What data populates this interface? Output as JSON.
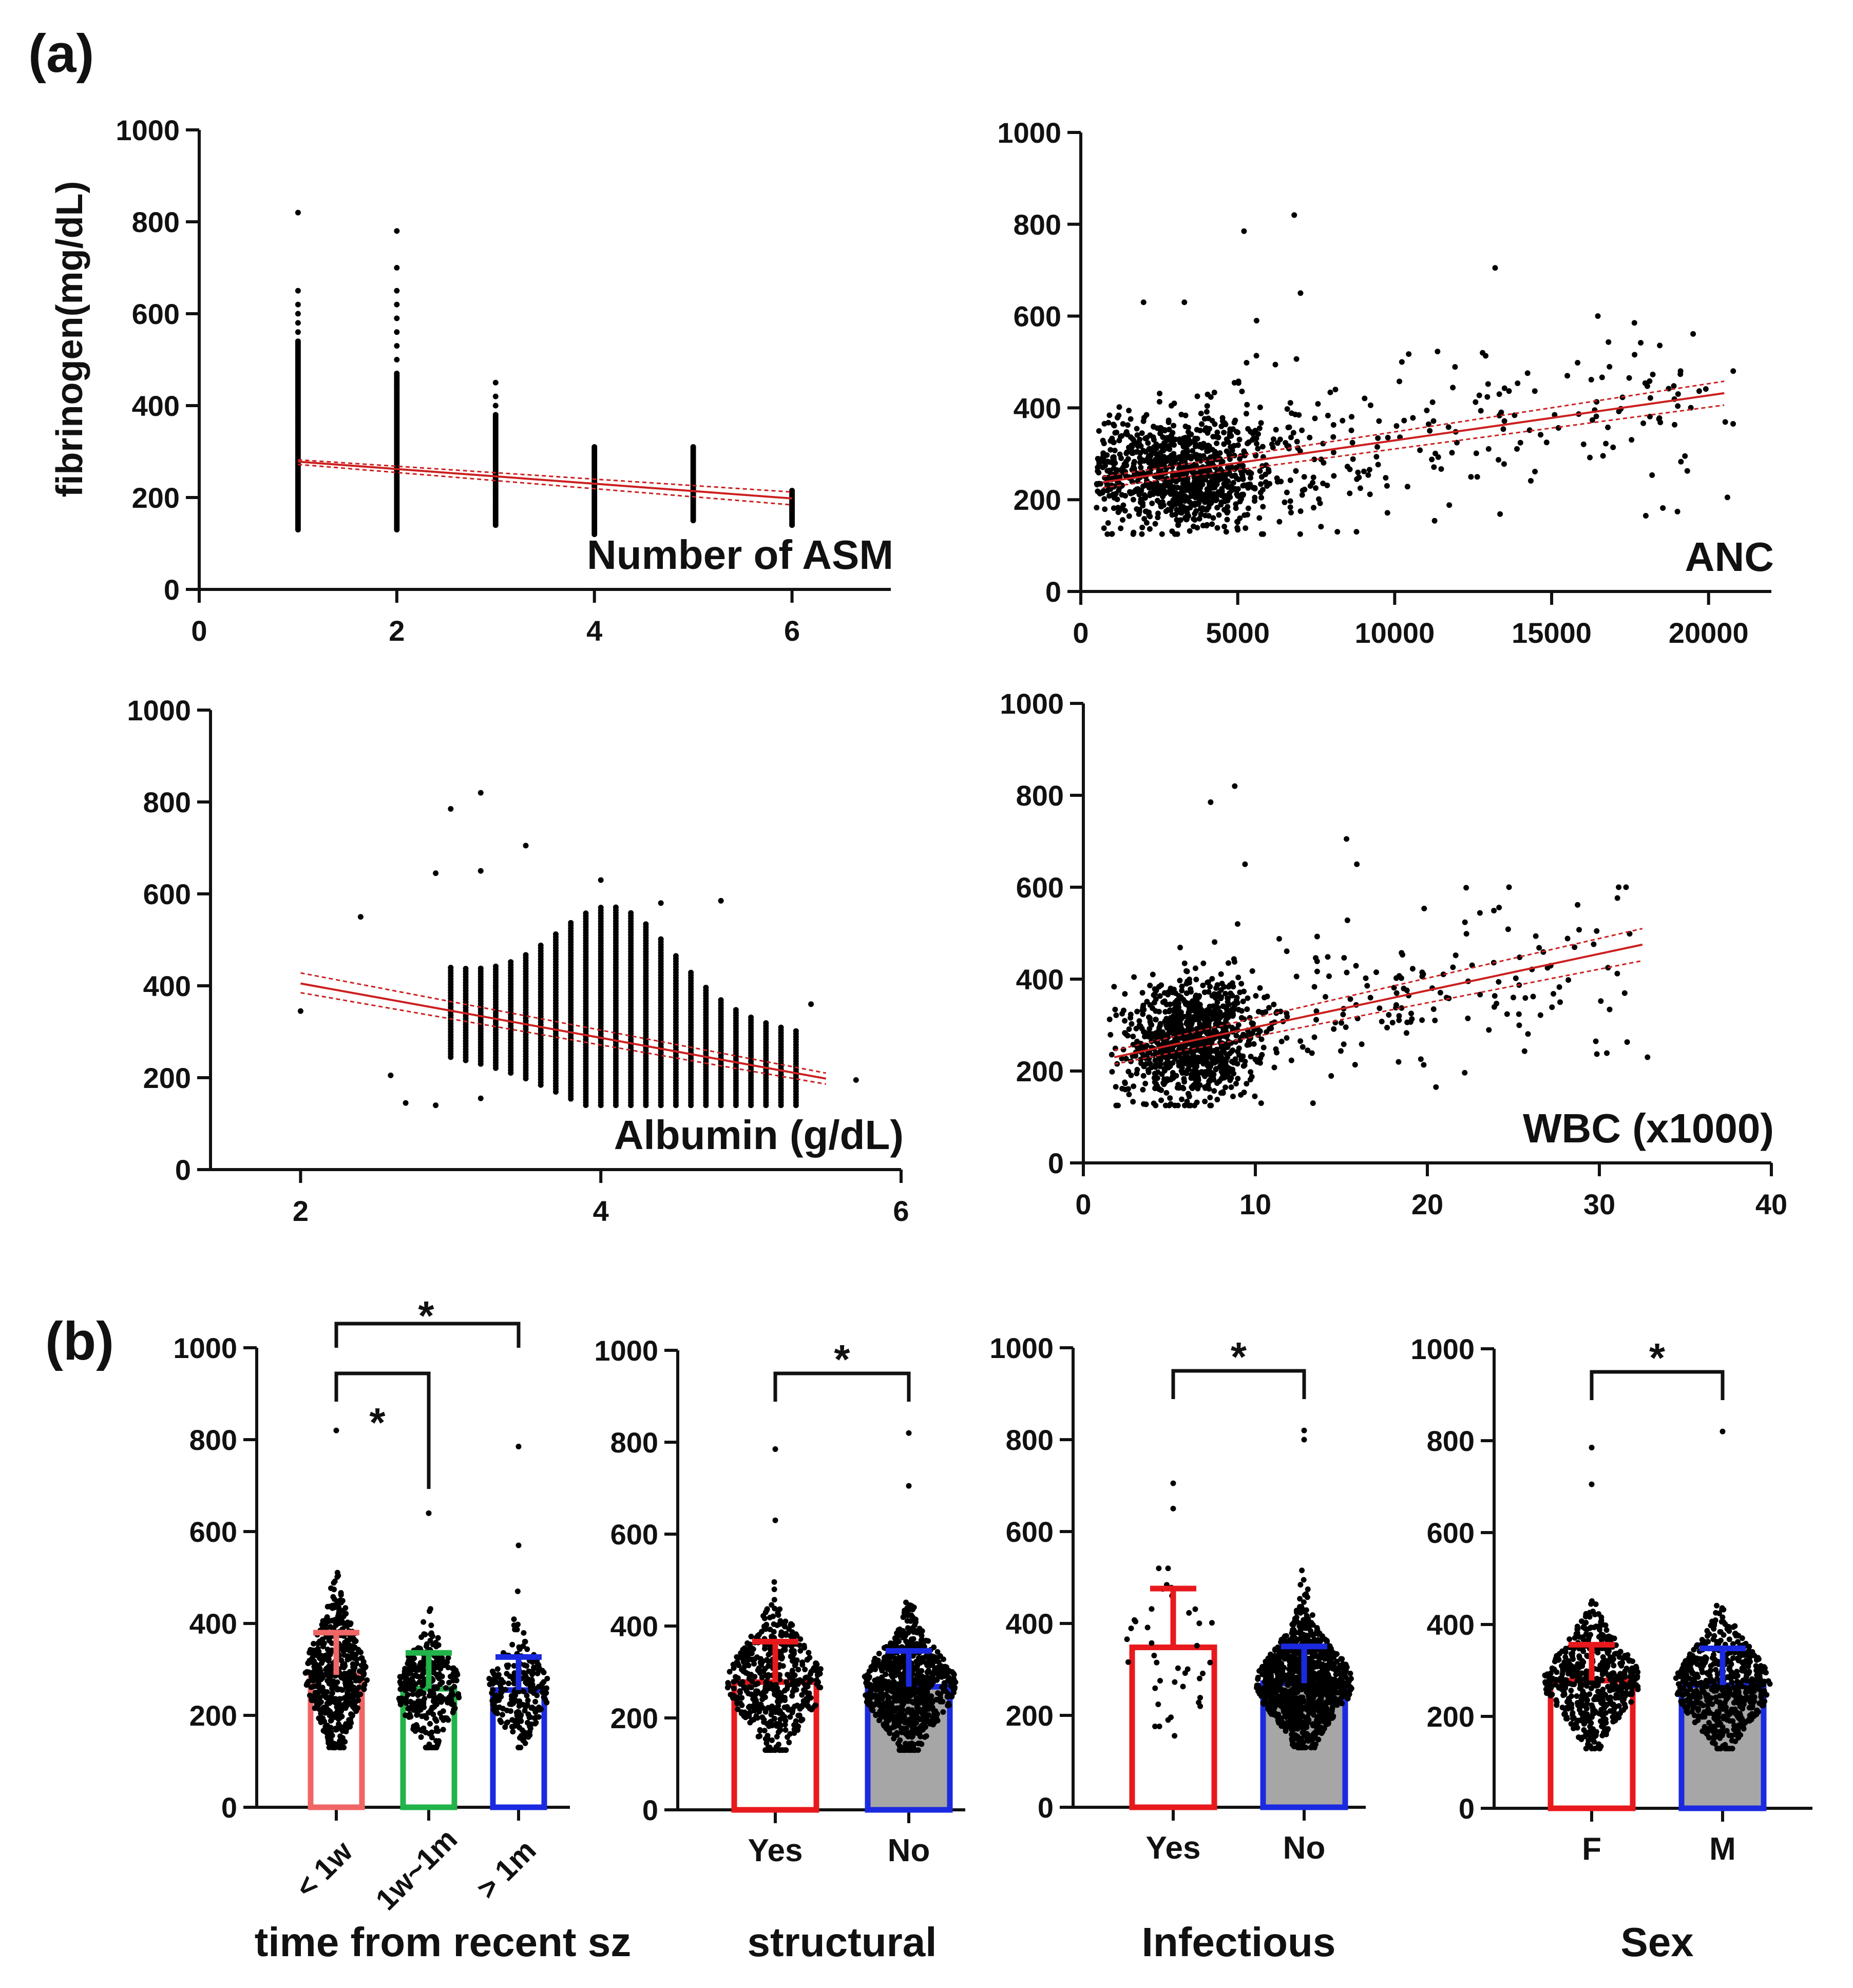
{
  "figure": {
    "label_a": "(a)",
    "label_b": "(b)"
  },
  "colors": {
    "fit": "#cc1f1f",
    "points": "#000000",
    "red": "#e8191d",
    "salmon": "#f06666",
    "green": "#22b34a",
    "blue": "#1b2ae0",
    "gray": "#a6a6a6"
  },
  "chart_data": [
    {
      "id": "a1",
      "type": "scatter",
      "xlabel": "Number of ASM",
      "ylabel": "fibrinogen(mg/dL)",
      "xlim": [
        0,
        7
      ],
      "ylim": [
        0,
        1000
      ],
      "xticks": [
        0,
        2,
        4,
        6
      ],
      "yticks": [
        0,
        200,
        400,
        600,
        800,
        1000
      ],
      "xtick_labels": [
        "0",
        "2",
        "4",
        "6"
      ],
      "ytick_labels": [
        "0",
        "200",
        "400",
        "600",
        "800",
        "1000"
      ],
      "fit": {
        "x": [
          1,
          6
        ],
        "y": [
          278,
          198
        ]
      },
      "ci_upper": {
        "x": [
          1,
          6
        ],
        "y": [
          282,
          212
        ]
      },
      "ci_lower": {
        "x": [
          1,
          6
        ],
        "y": [
          272,
          184
        ]
      },
      "columns": [
        {
          "x": 1,
          "min": 130,
          "max": 540,
          "outliers": [
            560,
            580,
            600,
            620,
            650,
            820
          ]
        },
        {
          "x": 2,
          "min": 130,
          "max": 470,
          "outliers": [
            500,
            530,
            560,
            590,
            620,
            650,
            700,
            780
          ]
        },
        {
          "x": 3,
          "min": 140,
          "max": 380,
          "outliers": [
            400,
            420,
            450
          ]
        },
        {
          "x": 4,
          "min": 120,
          "max": 310,
          "outliers": []
        },
        {
          "x": 5,
          "min": 150,
          "max": 310,
          "outliers": []
        },
        {
          "x": 6,
          "min": 140,
          "max": 215,
          "outliers": []
        }
      ]
    },
    {
      "id": "a2",
      "type": "scatter",
      "xlabel": "ANC",
      "xlim": [
        0,
        22000
      ],
      "ylim": [
        0,
        1000
      ],
      "xticks": [
        0,
        5000,
        10000,
        15000,
        20000
      ],
      "yticks": [
        0,
        200,
        400,
        600,
        800,
        1000
      ],
      "xtick_labels": [
        "0",
        "5000",
        "10000",
        "15000",
        "20000"
      ],
      "ytick_labels": [
        "0",
        "200",
        "400",
        "600",
        "800",
        "1000"
      ],
      "fit": {
        "x": [
          700,
          20500
        ],
        "y": [
          238,
          432
        ]
      },
      "ci_upper": {
        "x": [
          700,
          20500
        ],
        "y": [
          250,
          458
        ]
      },
      "ci_lower": {
        "x": [
          700,
          20500
        ],
        "y": [
          226,
          406
        ]
      },
      "cluster": {
        "cx": 3200,
        "sx": 1500,
        "cy": 255,
        "sy": 60,
        "n": 900,
        "xmin": 500
      },
      "spread": {
        "xmin": 4000,
        "xmax": 20800,
        "n": 260,
        "sy": 85
      },
      "outliers": [
        [
          6800,
          820
        ],
        [
          5200,
          785
        ],
        [
          13200,
          705
        ],
        [
          7000,
          650
        ],
        [
          2000,
          630
        ],
        [
          3300,
          630
        ],
        [
          5600,
          590
        ],
        [
          15500,
          470
        ],
        [
          20600,
          205
        ],
        [
          18000,
          165
        ],
        [
          12800,
          520
        ]
      ]
    },
    {
      "id": "a3",
      "type": "scatter",
      "xlabel": "Albumin (g/dL)",
      "xlim": [
        1.4,
        6
      ],
      "ylim": [
        0,
        1000
      ],
      "xticks": [
        2,
        4,
        6
      ],
      "yticks": [
        0,
        200,
        400,
        600,
        800,
        1000
      ],
      "xtick_labels": [
        "2",
        "4",
        "6"
      ],
      "ytick_labels": [
        "0",
        "200",
        "400",
        "600",
        "800",
        "1000"
      ],
      "fit": {
        "x": [
          2.0,
          5.5
        ],
        "y": [
          405,
          198
        ]
      },
      "ci_upper": {
        "x": [
          2.0,
          5.5
        ],
        "y": [
          428,
          210
        ]
      },
      "ci_lower": {
        "x": [
          2.0,
          5.5
        ],
        "y": [
          385,
          186
        ]
      },
      "column_start": 3.0,
      "column_end": 5.3,
      "column_step": 0.1,
      "outliers": [
        [
          2.0,
          345
        ],
        [
          2.4,
          550
        ],
        [
          2.6,
          205
        ],
        [
          2.7,
          145
        ],
        [
          2.9,
          140
        ],
        [
          2.9,
          645
        ],
        [
          3.0,
          785
        ],
        [
          3.2,
          820
        ],
        [
          3.2,
          650
        ],
        [
          3.5,
          705
        ],
        [
          4.0,
          630
        ],
        [
          4.4,
          580
        ],
        [
          4.8,
          585
        ],
        [
          5.7,
          195
        ],
        [
          5.4,
          360
        ],
        [
          3.2,
          155
        ]
      ]
    },
    {
      "id": "a4",
      "type": "scatter",
      "xlabel": "WBC (x1000)",
      "xlim": [
        0,
        40
      ],
      "ylim": [
        0,
        1000
      ],
      "xticks": [
        0,
        10,
        20,
        30,
        40
      ],
      "yticks": [
        0,
        200,
        400,
        600,
        800,
        1000
      ],
      "xtick_labels": [
        "0",
        "10",
        "20",
        "30",
        "40"
      ],
      "ytick_labels": [
        "0",
        "200",
        "400",
        "600",
        "800",
        "1000"
      ],
      "fit": {
        "x": [
          1.8,
          32.5
        ],
        "y": [
          230,
          475
        ]
      },
      "ci_upper": {
        "x": [
          1.8,
          32.5
        ],
        "y": [
          245,
          510
        ]
      },
      "ci_lower": {
        "x": [
          1.8,
          32.5
        ],
        "y": [
          215,
          440
        ]
      },
      "cluster": {
        "cx": 6.3,
        "sx": 2.0,
        "cy": 265,
        "sy": 65,
        "n": 900,
        "xmin": 1.5
      },
      "spread": {
        "xmin": 8,
        "xmax": 32,
        "n": 200,
        "sy": 90
      },
      "outliers": [
        [
          8.8,
          820
        ],
        [
          7.4,
          785
        ],
        [
          15.3,
          705
        ],
        [
          15.9,
          650
        ],
        [
          9.4,
          650
        ],
        [
          32.8,
          230
        ],
        [
          25.0,
          360
        ],
        [
          20.5,
          165
        ],
        [
          22.6,
          430
        ]
      ]
    },
    {
      "id": "b1",
      "type": "bar",
      "group_label": "time from recent sz",
      "categories": [
        "< 1w",
        "1w~1m",
        "> 1m"
      ],
      "values": [
        288,
        258,
        255
      ],
      "sd": [
        92,
        78,
        72
      ],
      "ylim": [
        0,
        1000
      ],
      "yticks": [
        0,
        200,
        400,
        600,
        800,
        1000
      ],
      "ytick_labels": [
        "0",
        "200",
        "400",
        "600",
        "800",
        "1000"
      ],
      "colors": [
        "#f06666",
        "#22b34a",
        "#1b2ae0"
      ],
      "fills": [
        "#ffffff",
        "#ffffff",
        "#ffffff"
      ],
      "n_points": [
        520,
        320,
        220
      ],
      "max_points": [
        650,
        640,
        470
      ],
      "extra_outliers": [
        [
          0,
          820
        ],
        [
          1,
          640
        ],
        [
          2,
          785
        ],
        [
          2,
          570
        ]
      ],
      "significance": [
        {
          "from": 0,
          "to": 2,
          "label": "*"
        },
        {
          "from": 0,
          "to": 1,
          "label": "*"
        }
      ]
    },
    {
      "id": "b2",
      "type": "bar",
      "group_label": "structural",
      "categories": [
        "Yes",
        "No"
      ],
      "values": [
        278,
        268
      ],
      "sd": [
        88,
        78
      ],
      "ylim": [
        0,
        1000
      ],
      "yticks": [
        0,
        200,
        400,
        600,
        800,
        1000
      ],
      "ytick_labels": [
        "0",
        "200",
        "400",
        "600",
        "800",
        "1000"
      ],
      "colors": [
        "#e8191d",
        "#1b2ae0"
      ],
      "fills": [
        "#ffffff",
        "#a6a6a6"
      ],
      "n_points": [
        460,
        800
      ],
      "max_points": [
        580,
        650
      ],
      "extra_outliers": [
        [
          0,
          785
        ],
        [
          0,
          630
        ],
        [
          1,
          820
        ],
        [
          1,
          705
        ]
      ],
      "significance": [
        {
          "from": 0,
          "to": 1,
          "label": "*"
        }
      ]
    },
    {
      "id": "b3",
      "type": "bar",
      "group_label": "Infectious",
      "categories": [
        "Yes",
        "No"
      ],
      "values": [
        348,
        270
      ],
      "sd": [
        128,
        80
      ],
      "ylim": [
        0,
        1000
      ],
      "yticks": [
        0,
        200,
        400,
        600,
        800,
        1000
      ],
      "ytick_labels": [
        "0",
        "200",
        "400",
        "600",
        "800",
        "1000"
      ],
      "colors": [
        "#e8191d",
        "#1b2ae0"
      ],
      "fills": [
        "#ffffff",
        "#a6a6a6"
      ],
      "n_points": [
        40,
        1100
      ],
      "max_points": [
        520,
        650
      ],
      "extra_outliers": [
        [
          0,
          705
        ],
        [
          0,
          650
        ],
        [
          1,
          820
        ],
        [
          1,
          800
        ]
      ],
      "significance": [
        {
          "from": 0,
          "to": 1,
          "label": "*"
        }
      ]
    },
    {
      "id": "b4",
      "type": "bar",
      "group_label": "Sex",
      "categories": [
        "F",
        "M"
      ],
      "values": [
        278,
        268
      ],
      "sd": [
        78,
        80
      ],
      "ylim": [
        0,
        1000
      ],
      "yticks": [
        0,
        200,
        400,
        600,
        800,
        1000
      ],
      "ytick_labels": [
        "0",
        "200",
        "400",
        "600",
        "800",
        "1000"
      ],
      "colors": [
        "#e8191d",
        "#1b2ae0"
      ],
      "fills": [
        "#ffffff",
        "#a6a6a6"
      ],
      "n_points": [
        560,
        560
      ],
      "max_points": [
        640,
        650
      ],
      "extra_outliers": [
        [
          0,
          785
        ],
        [
          0,
          705
        ],
        [
          1,
          820
        ]
      ],
      "significance": [
        {
          "from": 0,
          "to": 1,
          "label": "*"
        }
      ]
    }
  ]
}
